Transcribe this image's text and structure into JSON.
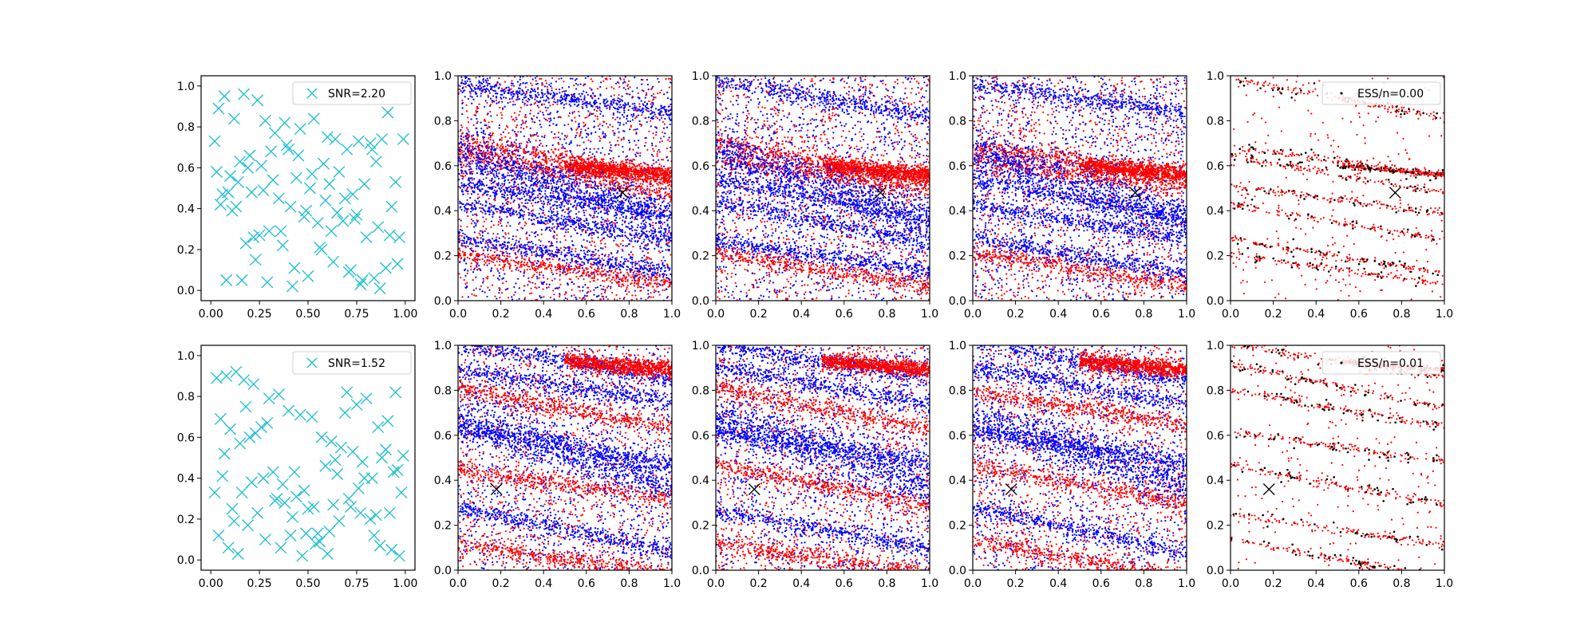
{
  "chart_data": [
    {
      "panel": "row1-col1",
      "type": "scatter",
      "xlim": [
        -0.05,
        1.05
      ],
      "ylim": [
        -0.05,
        1.05
      ],
      "xticks": [
        "0.00",
        "0.25",
        "0.50",
        "0.75",
        "1.00"
      ],
      "yticks": [
        "0.0",
        "0.2",
        "0.4",
        "0.6",
        "0.8",
        "1.0"
      ],
      "legend": {
        "label": "SNR=2.20",
        "placement": "upper right"
      },
      "marker": "x",
      "color": "#17becf",
      "series": [
        {
          "name": "SNR=2.20",
          "x": [
            0.04,
            0.07,
            0.12,
            0.17,
            0.24,
            0.28,
            0.33,
            0.39,
            0.45,
            0.52,
            0.58,
            0.64,
            0.7,
            0.76,
            0.82,
            0.88,
            0.95,
            0.02,
            0.1,
            0.15,
            0.21,
            0.27,
            0.35,
            0.41,
            0.48,
            0.55,
            0.62,
            0.68,
            0.74,
            0.8,
            0.86,
            0.92,
            0.05,
            0.11,
            0.18,
            0.23,
            0.3,
            0.37,
            0.43,
            0.5,
            0.57,
            0.63,
            0.71,
            0.77,
            0.84,
            0.9,
            0.97,
            0.03,
            0.09,
            0.14,
            0.2,
            0.26,
            0.32,
            0.4,
            0.46,
            0.53,
            0.6,
            0.66,
            0.73,
            0.79,
            0.85,
            0.93,
            0.06,
            0.13,
            0.19,
            0.25,
            0.31,
            0.38,
            0.44,
            0.51,
            0.59,
            0.65,
            0.72,
            0.78,
            0.87,
            0.96,
            0.08,
            0.16,
            0.22,
            0.29,
            0.36,
            0.42,
            0.49,
            0.56,
            0.61,
            0.69,
            0.75,
            0.83,
            0.91,
            0.99
          ],
          "y": [
            0.89,
            0.95,
            0.84,
            0.96,
            0.93,
            0.83,
            0.77,
            0.71,
            0.66,
            0.57,
            0.62,
            0.74,
            0.69,
            0.73,
            0.72,
            0.74,
            0.53,
            0.73,
            0.56,
            0.63,
            0.48,
            0.49,
            0.45,
            0.41,
            0.36,
            0.33,
            0.29,
            0.34,
            0.35,
            0.26,
            0.31,
            0.27,
            0.42,
            0.39,
            0.23,
            0.15,
            0.29,
            0.22,
            0.11,
            0.07,
            0.2,
            0.14,
            0.09,
            0.03,
            0.06,
            0.11,
            0.26,
            0.58,
            0.48,
            0.53,
            0.66,
            0.61,
            0.54,
            0.69,
            0.79,
            0.84,
            0.75,
            0.58,
            0.47,
            0.52,
            0.63,
            0.41,
            0.47,
            0.41,
            0.6,
            0.27,
            0.68,
            0.82,
            0.55,
            0.5,
            0.44,
            0.38,
            0.1,
            0.05,
            0.01,
            0.13,
            0.05,
            0.05,
            0.26,
            0.04,
            0.29,
            0.02,
            0.39,
            0.21,
            0.52,
            0.45,
            0.37,
            0.69,
            0.87,
            0.74
          ]
        }
      ]
    },
    {
      "panel": "row1-col2",
      "type": "scatter",
      "xlim": [
        0,
        1
      ],
      "ylim": [
        0,
        1
      ],
      "xticks": [
        "0.0",
        "0.2",
        "0.4",
        "0.6",
        "0.8",
        "1.0"
      ],
      "yticks": [
        "0.0",
        "0.2",
        "0.4",
        "0.6",
        "0.8",
        "1.0"
      ],
      "series_colors": [
        "#0000ff",
        "#ff0000"
      ],
      "marker_position": [
        0.77,
        0.48
      ],
      "structure": "blue diagonal band, red cluster near (0.8,0.56), sparse background"
    },
    {
      "panel": "row1-col3",
      "type": "scatter",
      "xlim": [
        0,
        1
      ],
      "ylim": [
        0,
        1
      ],
      "xticks": [
        "0.0",
        "0.2",
        "0.4",
        "0.6",
        "0.8",
        "1.0"
      ],
      "yticks": [
        "0.0",
        "0.2",
        "0.4",
        "0.6",
        "0.8",
        "1.0"
      ],
      "series_colors": [
        "#0000ff",
        "#ff0000"
      ],
      "marker_position": [
        0.77,
        0.48
      ],
      "structure": "blue band near y=0.48, red tilted streaks"
    },
    {
      "panel": "row1-col4",
      "type": "scatter",
      "xlim": [
        0,
        1
      ],
      "ylim": [
        0,
        1
      ],
      "xticks": [
        "0.0",
        "0.2",
        "0.4",
        "0.6",
        "0.8",
        "1.0"
      ],
      "yticks": [
        "0.0",
        "0.2",
        "0.4",
        "0.6",
        "0.8",
        "1.0"
      ],
      "series_colors": [
        "#0000ff",
        "#ff0000"
      ],
      "marker_position": [
        0.76,
        0.48
      ],
      "structure": "thin red line near y=0.62, blue band near y=0.48"
    },
    {
      "panel": "row1-col5",
      "type": "scatter",
      "xlim": [
        0,
        1
      ],
      "ylim": [
        0,
        1
      ],
      "xticks": [
        "0.0",
        "0.2",
        "0.4",
        "0.6",
        "0.8",
        "1.0"
      ],
      "yticks": [
        "0.0",
        "0.2",
        "0.4",
        "0.6",
        "0.8",
        "1.0"
      ],
      "legend": {
        "label": "ESS/n=0.00",
        "placement": "upper right"
      },
      "series_colors": [
        "#ff0000",
        "#000000"
      ],
      "marker_position": [
        0.77,
        0.48
      ],
      "structure": "sparse red and black dots along tilted streaks"
    },
    {
      "panel": "row2-col1",
      "type": "scatter",
      "xlim": [
        -0.05,
        1.05
      ],
      "ylim": [
        -0.05,
        1.05
      ],
      "xticks": [
        "0.00",
        "0.25",
        "0.50",
        "0.75",
        "1.00"
      ],
      "yticks": [
        "0.0",
        "0.2",
        "0.4",
        "0.6",
        "0.8",
        "1.0"
      ],
      "legend": {
        "label": "SNR=1.52",
        "placement": "upper right"
      },
      "marker": "x",
      "color": "#17becf",
      "series": [
        {
          "name": "SNR=1.52",
          "x": [
            0.03,
            0.08,
            0.13,
            0.17,
            0.22,
            0.3,
            0.35,
            0.4,
            0.46,
            0.52,
            0.57,
            0.62,
            0.67,
            0.73,
            0.78,
            0.83,
            0.88,
            0.94,
            0.99,
            0.02,
            0.06,
            0.11,
            0.16,
            0.21,
            0.27,
            0.33,
            0.38,
            0.44,
            0.49,
            0.55,
            0.6,
            0.65,
            0.71,
            0.76,
            0.82,
            0.87,
            0.92,
            0.97,
            0.05,
            0.1,
            0.15,
            0.2,
            0.26,
            0.32,
            0.37,
            0.42,
            0.48,
            0.53,
            0.59,
            0.64,
            0.69,
            0.75,
            0.8,
            0.86,
            0.91,
            0.96,
            0.04,
            0.09,
            0.14,
            0.19,
            0.24,
            0.29,
            0.34,
            0.41,
            0.47,
            0.54,
            0.61,
            0.66,
            0.72,
            0.79,
            0.85,
            0.9,
            0.95,
            0.07,
            0.12,
            0.18,
            0.23,
            0.28,
            0.36,
            0.43,
            0.5,
            0.56,
            0.63,
            0.7,
            0.77,
            0.84,
            0.93,
            0.98
          ],
          "y": [
            0.89,
            0.9,
            0.92,
            0.88,
            0.86,
            0.79,
            0.81,
            0.73,
            0.71,
            0.7,
            0.6,
            0.58,
            0.55,
            0.53,
            0.48,
            0.4,
            0.5,
            0.43,
            0.51,
            0.33,
            0.41,
            0.25,
            0.33,
            0.38,
            0.4,
            0.29,
            0.28,
            0.31,
            0.13,
            0.13,
            0.03,
            0.42,
            0.3,
            0.35,
            0.2,
            0.07,
            0.23,
            0.02,
            0.69,
            0.64,
            0.57,
            0.6,
            0.65,
            0.43,
            0.37,
            0.21,
            0.34,
            0.26,
            0.46,
            0.49,
            0.72,
            0.76,
            0.79,
            0.65,
            0.68,
            0.44,
            0.12,
            0.06,
            0.03,
            0.17,
            0.23,
            0.67,
            0.3,
            0.12,
            0.02,
            0.08,
            0.14,
            0.19,
            0.26,
            0.4,
            0.22,
            0.54,
            0.82,
            0.52,
            0.19,
            0.75,
            0.62,
            0.1,
            0.06,
            0.43,
            0.25,
            0.09,
            0.27,
            0.82,
            0.23,
            0.12,
            0.05,
            0.33
          ]
        }
      ]
    },
    {
      "panel": "row2-col2",
      "type": "scatter",
      "xlim": [
        0,
        1
      ],
      "ylim": [
        0,
        1
      ],
      "xticks": [
        "0.0",
        "0.2",
        "0.4",
        "0.6",
        "0.8",
        "1.0"
      ],
      "yticks": [
        "0.0",
        "0.2",
        "0.4",
        "0.6",
        "0.8",
        "1.0"
      ],
      "series_colors": [
        "#0000ff",
        "#ff0000"
      ],
      "marker_position": [
        0.18,
        0.36
      ],
      "structure": "blue diagonal bands, red clusters bottom-left"
    },
    {
      "panel": "row2-col3",
      "type": "scatter",
      "xlim": [
        0,
        1
      ],
      "ylim": [
        0,
        1
      ],
      "xticks": [
        "0.0",
        "0.2",
        "0.4",
        "0.6",
        "0.8",
        "1.0"
      ],
      "yticks": [
        "0.0",
        "0.2",
        "0.4",
        "0.6",
        "0.8",
        "1.0"
      ],
      "series_colors": [
        "#0000ff",
        "#ff0000"
      ],
      "marker_position": [
        0.18,
        0.36
      ],
      "structure": "red streak near y=0.70, blue bands"
    },
    {
      "panel": "row2-col4",
      "type": "scatter",
      "xlim": [
        0,
        1
      ],
      "ylim": [
        0,
        1
      ],
      "xticks": [
        "0.0",
        "0.2",
        "0.4",
        "0.6",
        "0.8",
        "1.0"
      ],
      "yticks": [
        "0.0",
        "0.2",
        "0.4",
        "0.6",
        "0.8",
        "1.0"
      ],
      "series_colors": [
        "#0000ff",
        "#ff0000"
      ],
      "marker_position": [
        0.18,
        0.36
      ],
      "structure": "red line near y=0.95, red streaks, blue bands"
    },
    {
      "panel": "row2-col5",
      "type": "scatter",
      "xlim": [
        0,
        1
      ],
      "ylim": [
        0,
        1
      ],
      "xticks": [
        "0.0",
        "0.2",
        "0.4",
        "0.6",
        "0.8",
        "1.0"
      ],
      "yticks": [
        "0.0",
        "0.2",
        "0.4",
        "0.6",
        "0.8",
        "1.0"
      ],
      "legend": {
        "label": "ESS/n=0.01",
        "placement": "upper right"
      },
      "series_colors": [
        "#ff0000",
        "#000000"
      ],
      "marker_position": [
        0.18,
        0.36
      ],
      "structure": "red line near y=0.93, red and black streaks"
    }
  ]
}
